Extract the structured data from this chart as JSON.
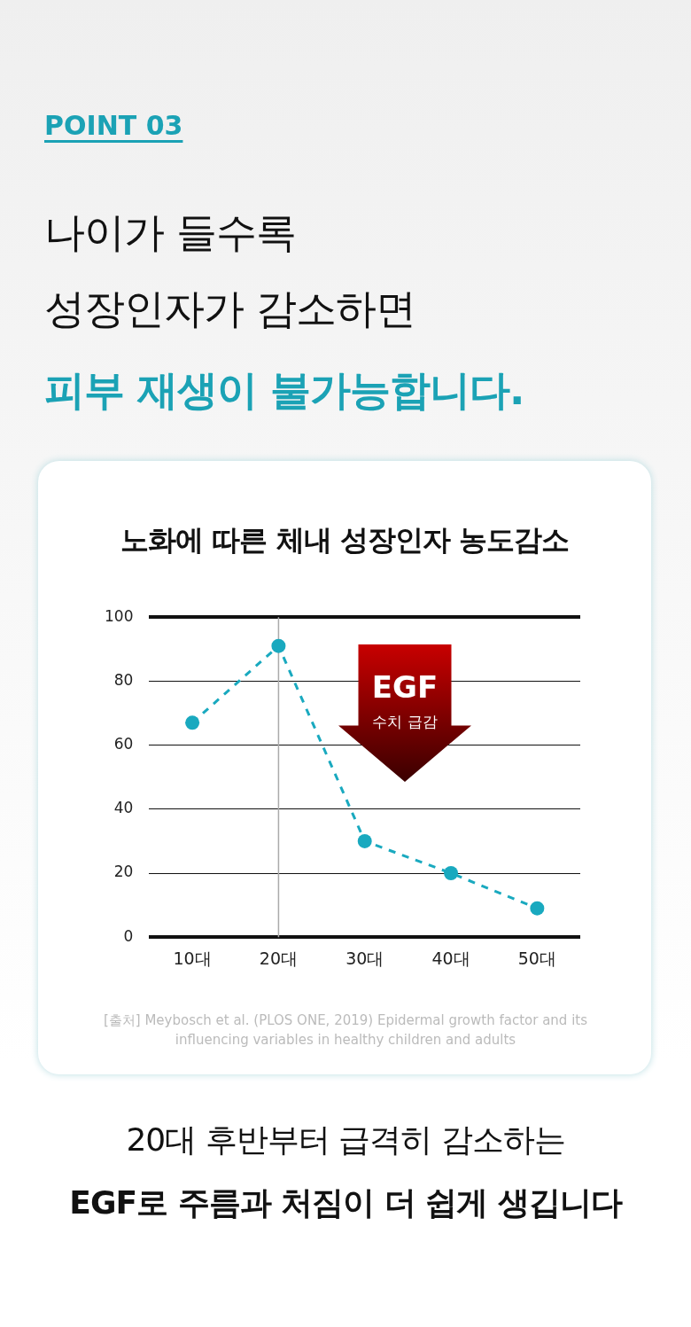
{
  "chart_data": {
    "type": "line",
    "title": "노화에 따른 체내 성장인자 농도감소",
    "categories": [
      "10대",
      "20대",
      "30대",
      "40대",
      "50대"
    ],
    "series": [
      {
        "color": "#19a9bf",
        "values": [
          67,
          91,
          30,
          20,
          9
        ]
      }
    ],
    "ylim": [
      0,
      100
    ],
    "yticks": [
      0,
      20,
      40,
      60,
      80,
      100
    ],
    "grid": "y",
    "legend": false,
    "marker": "circle",
    "line_style": "dashed",
    "ref_lines": [
      {
        "axis": "x",
        "value": "20대",
        "color": "#aaaaaa"
      }
    ],
    "annotations": [
      "POINT 03",
      "나이가 들수록",
      "성장인자가 감소하면",
      "피부 재생이 불가능합니다.",
      "EGF",
      "수치 급감",
      "[출처] Meybosch et al. (PLOS ONE, 2019) Epidermal growth factor and its influencing variables in healthy children and adults",
      "20대 후반부터 급격히 감소하는",
      "EGF로 주름과 처짐이 더 쉽게 생깁니다"
    ]
  }
}
